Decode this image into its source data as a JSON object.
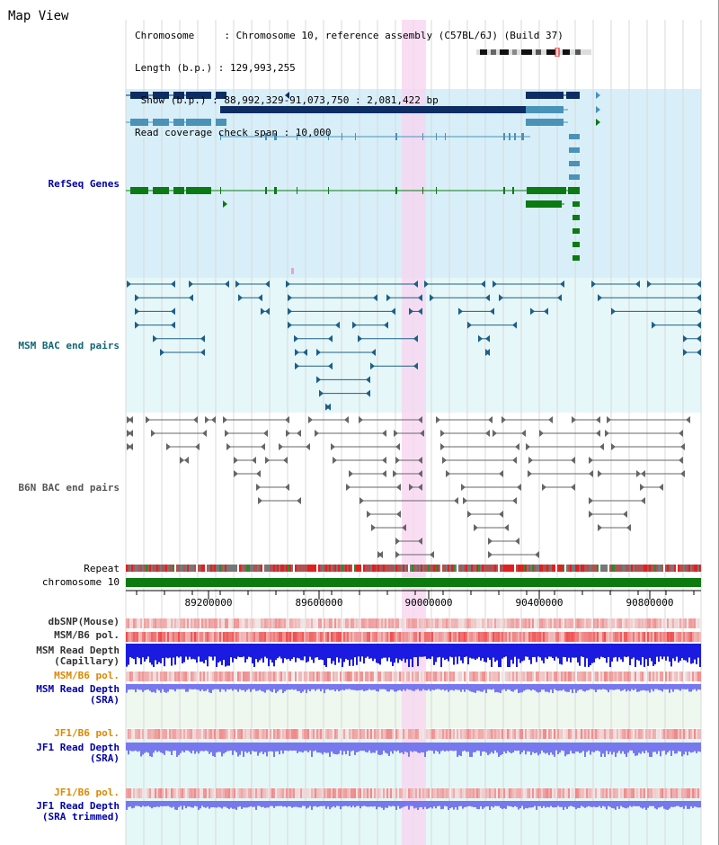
{
  "header": {
    "title": "Map View",
    "info_lines": [
      "Chromosome     : Chromosome 10, reference assembly (C57BL/6J) (Build 37)",
      "Length (b.p.) : 129,993,255",
      " Show (b.p.) : 88,992,329-91,073,750 : 2,081,422 bp",
      "Read coverage check span : 10,000"
    ]
  },
  "tracks": {
    "refseq": "RefSeq Genes",
    "msm_bac": "MSM BAC end pairs",
    "b6n_bac": "B6N BAC end pairs",
    "repeat": "Repeat",
    "chromosome": "chromosome 10",
    "dbsnp": "dbSNP(Mouse)",
    "msm_b6_pol_1": "MSM/B6 pol.",
    "msm_depth_cap": [
      "MSM Read Depth",
      "(Capillary)"
    ],
    "msm_b6_pol_2": "MSM/B6 pol.",
    "msm_depth_sra": [
      "MSM Read Depth",
      "(SRA)"
    ],
    "jf1_b6_pol_1": "JF1/B6 pol.",
    "jf1_depth_sra": [
      "JF1 Read Depth",
      "(SRA)"
    ],
    "jf1_b6_pol_2": "JF1/B6 pol.",
    "jf1_depth_trim": [
      "JF1 Read Depth",
      "(SRA trimmed)"
    ]
  },
  "axis": {
    "ticks": [
      "89200000",
      "89600000",
      "90000000",
      "90400000",
      "90800000"
    ]
  },
  "colors": {
    "label_blue": "#0000aa",
    "label_teal": "#116677",
    "label_gray": "#555555",
    "label_orange": "#dd8800",
    "refseq_band": "#d8eff9",
    "msm_band": "#e6f7f9",
    "highlight": "#f8d6f0",
    "gene_dark": "#0d2d63",
    "gene_mid": "#4a92b8",
    "gene_green": "#0b7a12",
    "chrom_green": "#0d7a10",
    "depth_blue": "#1a1ae0",
    "depth_light": "#7777ee",
    "pol_red": "#ee2222"
  }
}
